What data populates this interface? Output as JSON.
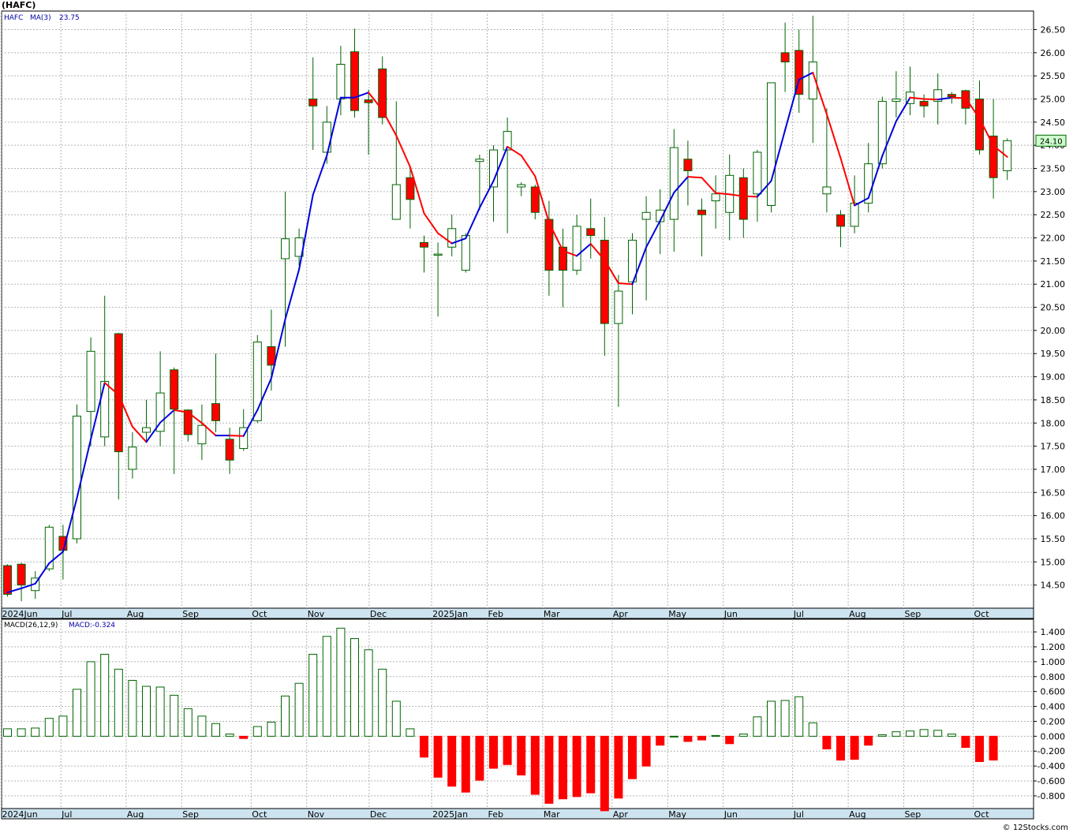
{
  "header": {
    "title": "(HAFC)",
    "copyright": "© 12Stocks.com"
  },
  "price_panel": {
    "legend_symbol": "HAFC",
    "legend_ma": "MA(3)",
    "legend_ma_value": "23.75",
    "last_price_tag": "24.10"
  },
  "macd_panel": {
    "legend_label": "MACD(26,12,9)",
    "legend_value": "MACD:-0.324"
  },
  "colors": {
    "up_body": "#ffffff",
    "candle_outline": "#006400",
    "down_body": "#ff0000",
    "ma_up": "#0000dd",
    "ma_down": "#ff0000",
    "macd_up": "#006400",
    "macd_down": "#ff0000",
    "grid": "#b4b4b4",
    "axis_band": "#cde4f0",
    "last_tag_bg": "#ccffcc"
  },
  "chart_data": [
    {
      "type": "candlestick",
      "symbol": "HAFC",
      "period": "weekly",
      "ylim": [
        14.0,
        26.9
      ],
      "grid": true,
      "y_ticks": [
        "14.50",
        "15.00",
        "15.50",
        "16.00",
        "16.50",
        "17.00",
        "17.50",
        "18.00",
        "18.50",
        "19.00",
        "19.50",
        "20.00",
        "20.50",
        "21.00",
        "21.50",
        "22.00",
        "22.50",
        "23.00",
        "23.50",
        "24.00",
        "24.50",
        "25.00",
        "25.50",
        "26.00",
        "26.50"
      ],
      "x_labels": [
        {
          "label": "2024Jun",
          "week": 0
        },
        {
          "label": "Jul",
          "week": 4.3
        },
        {
          "label": "Aug",
          "week": 9
        },
        {
          "label": "Sep",
          "week": 13
        },
        {
          "label": "Oct",
          "week": 18
        },
        {
          "label": "Nov",
          "week": 22
        },
        {
          "label": "Dec",
          "week": 26.5
        },
        {
          "label": "2025Jan",
          "week": 31
        },
        {
          "label": "Feb",
          "week": 35
        },
        {
          "label": "Mar",
          "week": 39
        },
        {
          "label": "Apr",
          "week": 44
        },
        {
          "label": "May",
          "week": 48
        },
        {
          "label": "Jun",
          "week": 52
        },
        {
          "label": "Jul",
          "week": 57
        },
        {
          "label": "Aug",
          "week": 61
        },
        {
          "label": "Sep",
          "week": 65
        },
        {
          "label": "Oct",
          "week": 70
        }
      ],
      "candles": [
        {
          "o": 14.92,
          "h": 14.95,
          "l": 14.25,
          "c": 14.3
        },
        {
          "o": 14.95,
          "h": 14.98,
          "l": 14.15,
          "c": 14.5
        },
        {
          "o": 14.38,
          "h": 14.8,
          "l": 14.2,
          "c": 14.65
        },
        {
          "o": 14.85,
          "h": 15.8,
          "l": 14.8,
          "c": 15.75
        },
        {
          "o": 15.55,
          "h": 15.8,
          "l": 14.62,
          "c": 15.25
        },
        {
          "o": 15.5,
          "h": 18.4,
          "l": 15.4,
          "c": 18.15
        },
        {
          "o": 18.25,
          "h": 19.85,
          "l": 17.5,
          "c": 19.55
        },
        {
          "o": 17.7,
          "h": 20.75,
          "l": 17.5,
          "c": 18.9
        },
        {
          "o": 19.93,
          "h": 19.95,
          "l": 16.35,
          "c": 17.38
        },
        {
          "o": 17.0,
          "h": 17.8,
          "l": 16.8,
          "c": 17.48
        },
        {
          "o": 17.8,
          "h": 18.5,
          "l": 17.6,
          "c": 17.9
        },
        {
          "o": 17.82,
          "h": 19.55,
          "l": 17.5,
          "c": 18.65
        },
        {
          "o": 19.15,
          "h": 19.2,
          "l": 16.9,
          "c": 18.3
        },
        {
          "o": 18.28,
          "h": 18.3,
          "l": 17.6,
          "c": 17.75
        },
        {
          "o": 17.55,
          "h": 18.4,
          "l": 17.2,
          "c": 17.95
        },
        {
          "o": 18.42,
          "h": 19.5,
          "l": 17.8,
          "c": 18.05
        },
        {
          "o": 17.65,
          "h": 17.9,
          "l": 16.9,
          "c": 17.2
        },
        {
          "o": 17.45,
          "h": 18.3,
          "l": 17.4,
          "c": 17.9
        },
        {
          "o": 18.05,
          "h": 19.9,
          "l": 18.0,
          "c": 19.75
        },
        {
          "o": 19.65,
          "h": 20.45,
          "l": 18.7,
          "c": 19.25
        },
        {
          "o": 21.55,
          "h": 23.0,
          "l": 19.65,
          "c": 21.98
        },
        {
          "o": 21.6,
          "h": 22.2,
          "l": 21.4,
          "c": 22.0
        },
        {
          "o": 25.0,
          "h": 25.9,
          "l": 23.9,
          "c": 24.85
        },
        {
          "o": 23.85,
          "h": 24.85,
          "l": 23.6,
          "c": 24.5
        },
        {
          "o": 25.0,
          "h": 26.15,
          "l": 24.65,
          "c": 25.75
        },
        {
          "o": 26.02,
          "h": 26.52,
          "l": 24.6,
          "c": 24.75
        },
        {
          "o": 24.98,
          "h": 25.2,
          "l": 23.8,
          "c": 24.92
        },
        {
          "o": 25.65,
          "h": 25.92,
          "l": 24.45,
          "c": 24.6
        },
        {
          "o": 22.4,
          "h": 24.95,
          "l": 22.4,
          "c": 23.15
        },
        {
          "o": 23.3,
          "h": 23.5,
          "l": 22.2,
          "c": 22.83
        },
        {
          "o": 21.9,
          "h": 22.05,
          "l": 21.25,
          "c": 21.8
        },
        {
          "o": 21.65,
          "h": 21.9,
          "l": 20.3,
          "c": 21.65
        },
        {
          "o": 21.8,
          "h": 22.5,
          "l": 21.6,
          "c": 22.2
        },
        {
          "o": 21.3,
          "h": 22.1,
          "l": 21.25,
          "c": 22.05
        },
        {
          "o": 23.65,
          "h": 23.8,
          "l": 22.6,
          "c": 23.7
        },
        {
          "o": 23.1,
          "h": 24.0,
          "l": 22.35,
          "c": 23.9
        },
        {
          "o": 23.9,
          "h": 24.6,
          "l": 22.1,
          "c": 24.3
        },
        {
          "o": 23.1,
          "h": 23.2,
          "l": 22.9,
          "c": 23.15
        },
        {
          "o": 23.1,
          "h": 23.15,
          "l": 22.4,
          "c": 22.55
        },
        {
          "o": 22.4,
          "h": 22.8,
          "l": 20.75,
          "c": 21.3
        },
        {
          "o": 21.8,
          "h": 22.2,
          "l": 20.5,
          "c": 21.3
        },
        {
          "o": 21.3,
          "h": 22.5,
          "l": 21.2,
          "c": 22.25
        },
        {
          "o": 22.2,
          "h": 22.85,
          "l": 21.55,
          "c": 22.05
        },
        {
          "o": 21.95,
          "h": 22.45,
          "l": 19.45,
          "c": 20.15
        },
        {
          "o": 20.15,
          "h": 21.2,
          "l": 18.35,
          "c": 20.85
        },
        {
          "o": 21.05,
          "h": 22.1,
          "l": 20.35,
          "c": 21.95
        },
        {
          "o": 22.4,
          "h": 22.9,
          "l": 20.65,
          "c": 22.55
        },
        {
          "o": 22.35,
          "h": 23.05,
          "l": 21.65,
          "c": 22.6
        },
        {
          "o": 22.4,
          "h": 24.35,
          "l": 21.7,
          "c": 23.95
        },
        {
          "o": 23.7,
          "h": 24.1,
          "l": 22.7,
          "c": 23.45
        },
        {
          "o": 22.6,
          "h": 22.85,
          "l": 21.6,
          "c": 22.5
        },
        {
          "o": 22.8,
          "h": 23.35,
          "l": 22.2,
          "c": 22.95
        },
        {
          "o": 22.55,
          "h": 23.8,
          "l": 21.95,
          "c": 23.35
        },
        {
          "o": 23.3,
          "h": 23.5,
          "l": 22.0,
          "c": 22.4
        },
        {
          "o": 22.95,
          "h": 23.9,
          "l": 22.35,
          "c": 23.85
        },
        {
          "o": 22.7,
          "h": 25.3,
          "l": 22.55,
          "c": 25.35
        },
        {
          "o": 26.0,
          "h": 26.65,
          "l": 25.15,
          "c": 25.8
        },
        {
          "o": 26.05,
          "h": 26.5,
          "l": 24.7,
          "c": 25.1
        },
        {
          "o": 25.0,
          "h": 26.8,
          "l": 24.05,
          "c": 25.8
        },
        {
          "o": 22.95,
          "h": 24.8,
          "l": 22.55,
          "c": 23.1
        },
        {
          "o": 22.5,
          "h": 22.6,
          "l": 21.8,
          "c": 22.25
        },
        {
          "o": 22.25,
          "h": 23.35,
          "l": 22.1,
          "c": 22.75
        },
        {
          "o": 22.75,
          "h": 24.05,
          "l": 22.55,
          "c": 23.6
        },
        {
          "o": 23.6,
          "h": 25.05,
          "l": 23.5,
          "c": 24.95
        },
        {
          "o": 24.95,
          "h": 25.6,
          "l": 24.6,
          "c": 25.0
        },
        {
          "o": 24.9,
          "h": 25.7,
          "l": 24.65,
          "c": 25.15
        },
        {
          "o": 24.95,
          "h": 25.1,
          "l": 24.6,
          "c": 24.85
        },
        {
          "o": 24.95,
          "h": 25.55,
          "l": 24.45,
          "c": 25.2
        },
        {
          "o": 25.1,
          "h": 25.15,
          "l": 24.9,
          "c": 25.05
        },
        {
          "o": 25.18,
          "h": 25.2,
          "l": 24.45,
          "c": 24.8
        },
        {
          "o": 25.0,
          "h": 25.4,
          "l": 23.8,
          "c": 23.9
        },
        {
          "o": 24.2,
          "h": 25.0,
          "l": 22.85,
          "c": 23.3
        },
        {
          "o": 23.45,
          "h": 24.15,
          "l": 23.25,
          "c": 24.1
        }
      ],
      "ma3": [
        14.34,
        14.43,
        14.53,
        14.97,
        15.22,
        16.38,
        17.65,
        18.87,
        18.61,
        17.92,
        17.59,
        18.01,
        18.28,
        18.23,
        18.0,
        17.73,
        17.73,
        17.72,
        18.28,
        18.97,
        20.24,
        21.32,
        22.93,
        23.78,
        25.03,
        25.03,
        25.14,
        24.76,
        24.21,
        23.53,
        22.53,
        22.1,
        21.88,
        21.99,
        22.65,
        23.23,
        23.97,
        23.78,
        23.33,
        22.33,
        21.72,
        21.61,
        21.87,
        21.52,
        21.02,
        21.0,
        21.8,
        22.37,
        22.98,
        23.32,
        23.3,
        22.97,
        22.94,
        22.9,
        22.89,
        23.23,
        24.33,
        25.42,
        25.57,
        24.67,
        23.72,
        22.7,
        22.86,
        23.77,
        24.52,
        25.03,
        25.0,
        24.99,
        25.03,
        25.02,
        24.58,
        23.99,
        23.75
      ]
    },
    {
      "type": "bar",
      "name": "MACD(26,12,9)",
      "ylim": [
        -0.97,
        1.57
      ],
      "y_ticks": [
        "-0.800",
        "-0.600",
        "-0.400",
        "-0.200",
        "0.000",
        "0.200",
        "0.400",
        "0.600",
        "0.800",
        "1.000",
        "1.200",
        "1.400"
      ],
      "values": [
        0.1,
        0.1,
        0.11,
        0.24,
        0.27,
        0.63,
        1.0,
        1.1,
        0.9,
        0.75,
        0.67,
        0.66,
        0.55,
        0.37,
        0.27,
        0.17,
        0.03,
        -0.03,
        0.13,
        0.19,
        0.54,
        0.71,
        1.1,
        1.34,
        1.45,
        1.31,
        1.16,
        0.9,
        0.47,
        0.1,
        -0.28,
        -0.55,
        -0.67,
        -0.75,
        -0.59,
        -0.43,
        -0.38,
        -0.52,
        -0.78,
        -0.9,
        -0.84,
        -0.81,
        -0.76,
        -1.0,
        -0.83,
        -0.57,
        -0.4,
        -0.12,
        0.0,
        -0.07,
        -0.05,
        0.01,
        -0.1,
        0.03,
        0.26,
        0.47,
        0.48,
        0.53,
        0.18,
        -0.17,
        -0.32,
        -0.31,
        -0.12,
        0.02,
        0.06,
        0.07,
        0.09,
        0.08,
        0.03,
        -0.15,
        -0.34,
        -0.32
      ]
    }
  ]
}
